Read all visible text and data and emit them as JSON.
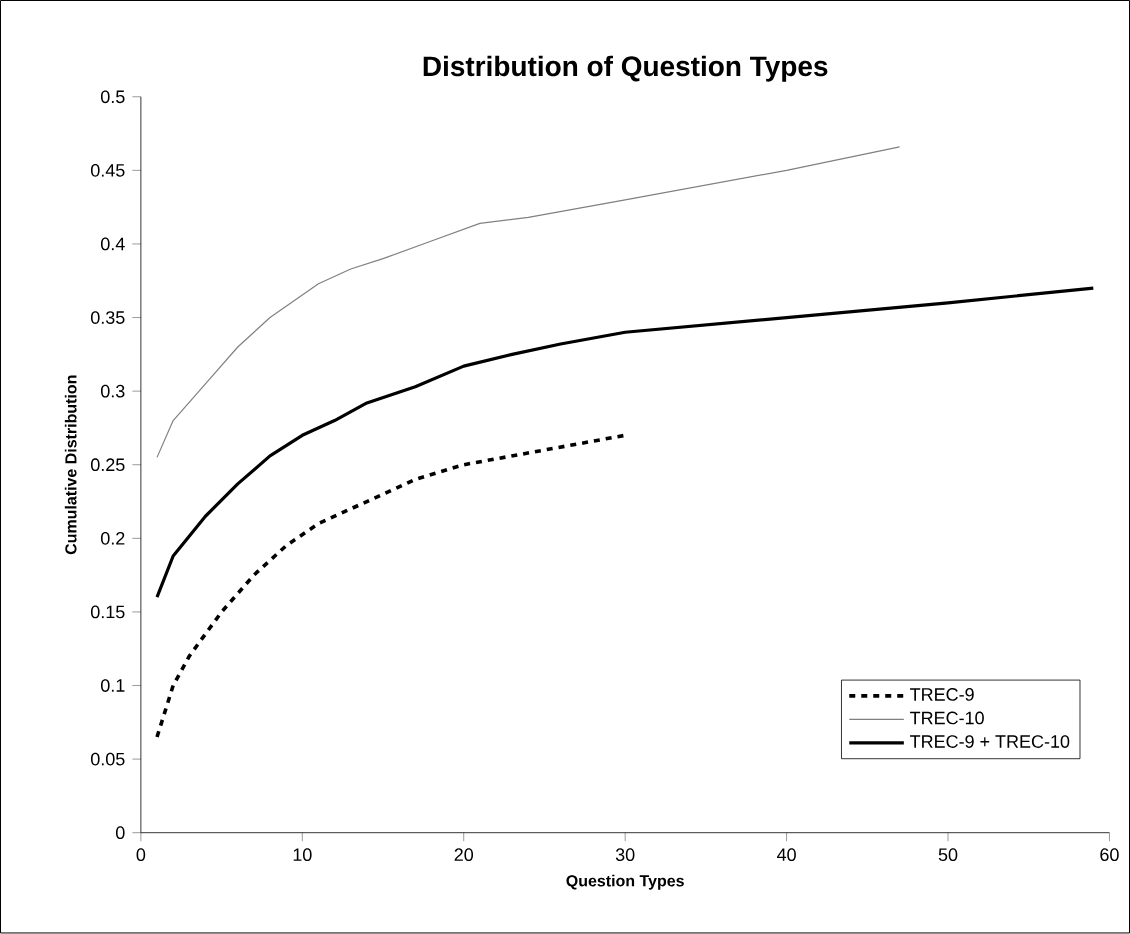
{
  "chart_data": {
    "type": "line",
    "title": "Distribution of Question Types",
    "xlabel": "Question Types",
    "ylabel": "Cumulative Distribution",
    "xlim": [
      0,
      60
    ],
    "xticks": [
      0,
      10,
      20,
      30,
      40,
      50,
      60
    ],
    "ylim": [
      0,
      0.5
    ],
    "yticks": [
      0,
      0.05,
      0.1,
      0.15,
      0.2,
      0.25,
      0.3,
      0.35,
      0.4,
      0.45,
      0.5
    ],
    "legend": "bottom right",
    "grid": false,
    "series": [
      {
        "name": "TREC-9",
        "color": "#000000",
        "line_style": "dashed",
        "x": [
          1,
          2,
          3,
          5,
          7,
          9,
          11,
          14,
          17,
          20,
          25,
          30
        ],
        "values": [
          0.065,
          0.1,
          0.12,
          0.15,
          0.175,
          0.195,
          0.21,
          0.225,
          0.24,
          0.25,
          0.26,
          0.27
        ]
      },
      {
        "name": "TREC-10",
        "color": "#808080",
        "line_style": "solid",
        "x": [
          1,
          2,
          4,
          6,
          8,
          11,
          13,
          15,
          18,
          21,
          24,
          30,
          40,
          47
        ],
        "values": [
          0.255,
          0.28,
          0.305,
          0.33,
          0.35,
          0.373,
          0.383,
          0.39,
          0.402,
          0.414,
          0.418,
          0.43,
          0.45,
          0.466
        ]
      },
      {
        "name": "TREC-9 + TREC-10",
        "color": "#000000",
        "line_style": "solid",
        "x": [
          1,
          2,
          4,
          6,
          8,
          10,
          12,
          14,
          17,
          20,
          23,
          26,
          30,
          40,
          50,
          59
        ],
        "values": [
          0.16,
          0.188,
          0.215,
          0.237,
          0.256,
          0.27,
          0.28,
          0.292,
          0.303,
          0.317,
          0.325,
          0.332,
          0.34,
          0.35,
          0.36,
          0.37
        ]
      }
    ]
  }
}
